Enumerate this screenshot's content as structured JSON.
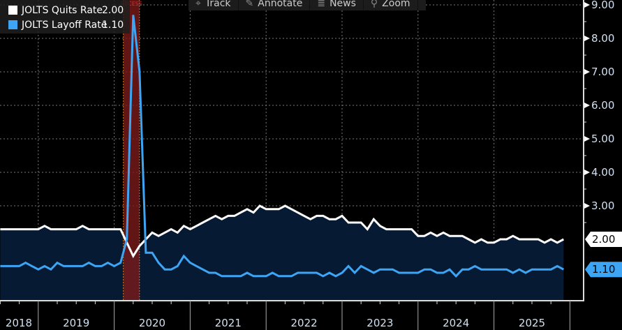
{
  "toolbar": {
    "items": [
      {
        "label": "Track",
        "icon": "crosshair-icon"
      },
      {
        "label": "Annotate",
        "icon": "pencil-icon"
      },
      {
        "label": "News",
        "icon": "news-icon"
      },
      {
        "label": "Zoom",
        "icon": "magnifier-icon"
      }
    ]
  },
  "recession_label": "RECESS",
  "chart_data": {
    "type": "line",
    "title": "",
    "xlabel": "",
    "ylabel": "",
    "ylim": [
      0.17,
      9.15
    ],
    "y_ticks": [
      "9.00",
      "8.00",
      "7.00",
      "6.00",
      "5.00",
      "4.00",
      "3.00",
      "2.00",
      "1.10"
    ],
    "y_tick_values": [
      9,
      8,
      7,
      6,
      5,
      4,
      3
    ],
    "x_tick_labels": [
      "2018",
      "2019",
      "2020",
      "2021",
      "2022",
      "2023",
      "2024",
      "2025"
    ],
    "x_start": "2018-07",
    "x_frequency": "monthly",
    "recession": {
      "start": "2020-02",
      "end": "2020-04"
    },
    "legend_position": "top-left",
    "series": [
      {
        "name": "JOLTS Quits Rate",
        "last_value": "2.00",
        "color": "#ffffff",
        "values": [
          2.3,
          2.3,
          2.3,
          2.3,
          2.3,
          2.3,
          2.3,
          2.4,
          2.3,
          2.3,
          2.3,
          2.3,
          2.3,
          2.4,
          2.3,
          2.3,
          2.3,
          2.3,
          2.3,
          2.3,
          1.9,
          1.5,
          1.8,
          2.0,
          2.2,
          2.1,
          2.2,
          2.3,
          2.2,
          2.4,
          2.3,
          2.4,
          2.5,
          2.6,
          2.7,
          2.6,
          2.7,
          2.7,
          2.8,
          2.9,
          2.8,
          3.0,
          2.9,
          2.9,
          2.9,
          3.0,
          2.9,
          2.8,
          2.7,
          2.6,
          2.7,
          2.7,
          2.6,
          2.6,
          2.7,
          2.5,
          2.5,
          2.5,
          2.3,
          2.6,
          2.4,
          2.3,
          2.3,
          2.3,
          2.3,
          2.3,
          2.1,
          2.1,
          2.2,
          2.1,
          2.2,
          2.1,
          2.1,
          2.1,
          2.0,
          1.9,
          2.0,
          1.9,
          1.9,
          2.0,
          2.0,
          2.1,
          2.0,
          2.0,
          2.0,
          2.0,
          1.9,
          2.0,
          1.9,
          2.0
        ]
      },
      {
        "name": "JOLTS Layoff Rate",
        "last_value": "1.10",
        "color": "#3da5f4",
        "values": [
          1.2,
          1.2,
          1.2,
          1.2,
          1.3,
          1.2,
          1.1,
          1.2,
          1.1,
          1.3,
          1.2,
          1.2,
          1.2,
          1.2,
          1.3,
          1.2,
          1.2,
          1.3,
          1.2,
          1.3,
          2.0,
          8.7,
          7.0,
          1.6,
          1.6,
          1.3,
          1.1,
          1.1,
          1.2,
          1.5,
          1.3,
          1.2,
          1.1,
          1.0,
          1.0,
          0.9,
          0.9,
          0.9,
          0.9,
          1.0,
          0.9,
          0.9,
          0.9,
          1.0,
          0.9,
          0.9,
          0.9,
          1.0,
          1.0,
          1.0,
          1.0,
          0.9,
          1.0,
          0.9,
          1.0,
          1.2,
          1.0,
          1.2,
          1.1,
          1.0,
          1.1,
          1.1,
          1.1,
          1.0,
          1.0,
          1.0,
          1.0,
          1.1,
          1.1,
          1.0,
          1.0,
          1.1,
          0.9,
          1.1,
          1.1,
          1.2,
          1.1,
          1.1,
          1.1,
          1.1,
          1.1,
          1.0,
          1.1,
          1.0,
          1.1,
          1.1,
          1.1,
          1.1,
          1.2,
          1.1
        ]
      }
    ]
  }
}
